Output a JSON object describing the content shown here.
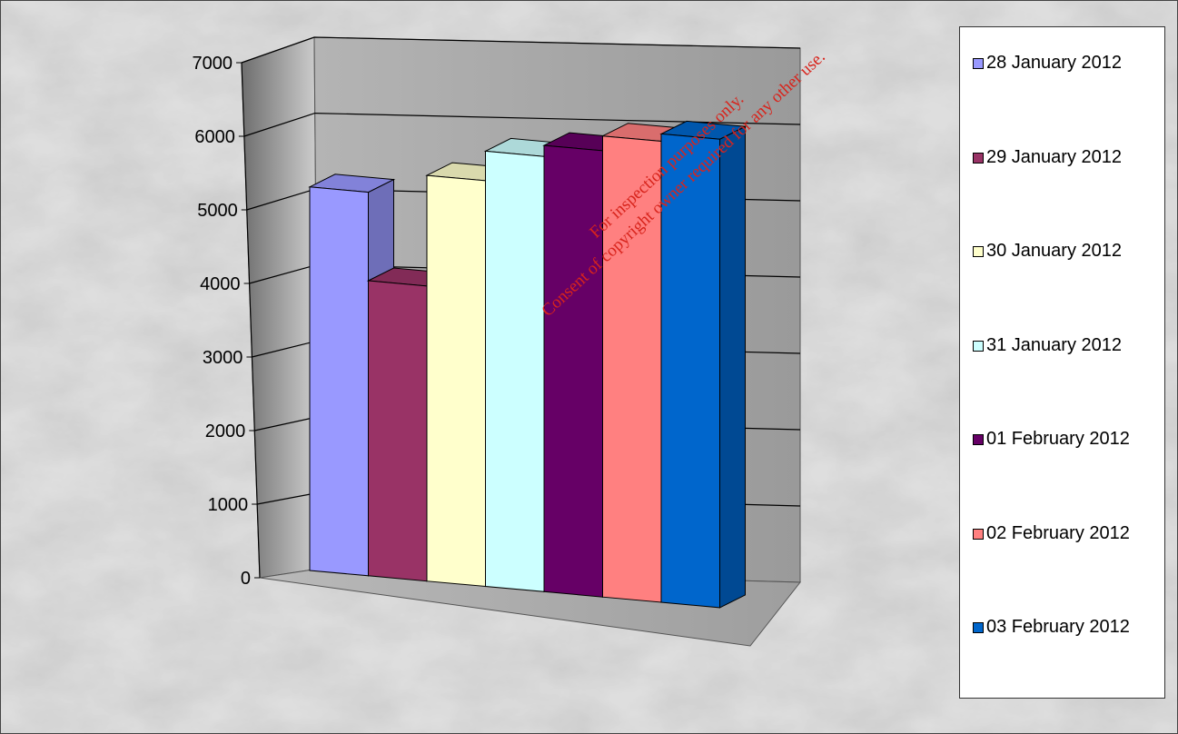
{
  "chart_data": {
    "type": "bar",
    "subtype": "3d-clustered-column",
    "title": "",
    "xlabel": "",
    "ylabel": "",
    "ylim": [
      0,
      7000
    ],
    "yticks": [
      "0",
      "1000",
      "2000",
      "3000",
      "4000",
      "5000",
      "6000",
      "7000"
    ],
    "grid": true,
    "legend_position": "right",
    "series": [
      {
        "name": "28 January 2012",
        "value": 5200,
        "color": "#9999ff"
      },
      {
        "name": "29 January 2012",
        "value": 4000,
        "color": "#993366"
      },
      {
        "name": "30 January 2012",
        "value": 5500,
        "color": "#ffffcc"
      },
      {
        "name": "31 January 2012",
        "value": 5900,
        "color": "#ccffff"
      },
      {
        "name": "01 February 2012",
        "value": 6050,
        "color": "#660066"
      },
      {
        "name": "02 February 2012",
        "value": 6250,
        "color": "#ff8080"
      },
      {
        "name": "03 February 2012",
        "value": 6350,
        "color": "#0066cc"
      }
    ]
  },
  "watermark": {
    "line1": "For inspection purposes only.",
    "line2": "Consent of copyright owner required for any other use."
  }
}
